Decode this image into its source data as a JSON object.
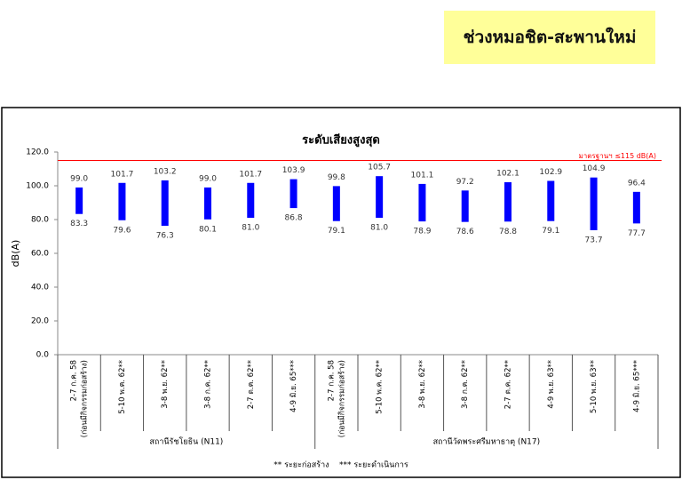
{
  "header": {
    "title": "ช่วงหมอชิต-สะพานใหม่"
  },
  "chart_data": {
    "type": "range-bar",
    "title": "ระดับเสียงสูงสุด",
    "y_label": "dB(A)",
    "color": "#0000ff",
    "ylim": [
      0,
      120
    ],
    "yticks": [
      {
        "value": 0,
        "label": "0.0"
      },
      {
        "value": 20,
        "label": "20.0"
      },
      {
        "value": 40,
        "label": "40.0"
      },
      {
        "value": 60,
        "label": "60.0"
      },
      {
        "value": 80,
        "label": "80.0"
      },
      {
        "value": 100,
        "label": "100.0"
      },
      {
        "value": 120,
        "label": "120.0"
      }
    ],
    "threshold": {
      "value": 115,
      "label": "มาตรฐานฯ ≤115 dB(A)",
      "color": "#ff0000"
    },
    "groups": [
      {
        "name": "สถานีรัชโยธิน (N11)",
        "categories": [
          [
            "2-7 ก.ค. 58",
            "(ก่อนมีกิจกรรมก่อสร้าง)"
          ],
          [
            "5-10 พ.ค. 62**"
          ],
          [
            "3-8 พ.ย. 62**"
          ],
          [
            "3-8 ก.ค. 62**"
          ],
          [
            "2-7 ต.ค. 62**"
          ],
          [
            "4-9 มิ.ย. 65***"
          ]
        ],
        "high": {
          "values": [
            99,
            101.7,
            103.2,
            99,
            101.7,
            103.9
          ],
          "value_labels": [
            "99.0",
            "101.7",
            "103.2",
            "99.0",
            "101.7",
            "103.9"
          ]
        },
        "low": {
          "values": [
            83.3,
            79.6,
            76.3,
            80.1,
            81,
            86.8
          ],
          "value_labels": [
            "83.3",
            "79.6",
            "76.3",
            "80.1",
            "81.0",
            "86.8"
          ]
        }
      },
      {
        "name": "สถานีวัดพระศรีมหาธาตุ (N17)",
        "categories": [
          [
            "2-7 ก.ค. 58",
            "(ก่อนมีกิจกรรมก่อสร้าง)"
          ],
          [
            "5-10 พ.ค. 62**"
          ],
          [
            "3-8 พ.ย. 62**"
          ],
          [
            "3-8 ก.ค. 62**"
          ],
          [
            "2-7 ต.ค. 62**"
          ],
          [
            "4-9 พ.ย. 63**"
          ],
          [
            "5-10 พ.ย. 63**"
          ],
          [
            "4-9 มิ.ย. 65***"
          ]
        ],
        "high": {
          "values": [
            99.8,
            105.7,
            101.1,
            97.2,
            102.1,
            102.9,
            104.9,
            96.4
          ],
          "value_labels": [
            "99.8",
            "105.7",
            "101.1",
            "97.2",
            "102.1",
            "102.9",
            "104.9",
            "96.4"
          ]
        },
        "low": {
          "values": [
            79.1,
            81,
            78.9,
            78.6,
            78.8,
            79.1,
            73.7,
            77.7
          ],
          "value_labels": [
            "79.1",
            "81.0",
            "78.9",
            "78.6",
            "78.8",
            "79.1",
            "73.7",
            "77.7"
          ]
        }
      }
    ],
    "footnote": "** ระยะก่อสร้าง    *** ระยะดำเนินการ"
  }
}
